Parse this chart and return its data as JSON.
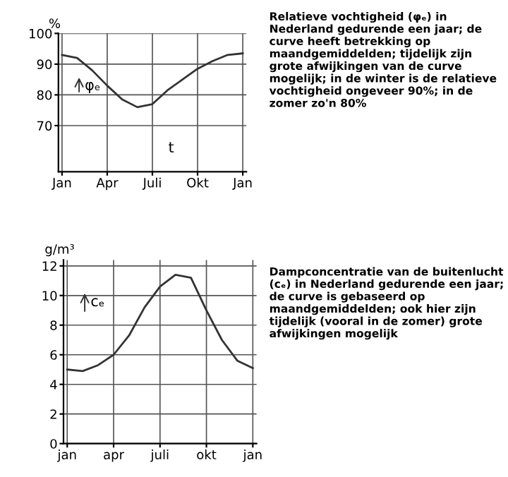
{
  "chart_data": [
    {
      "type": "line",
      "ylabel": "%",
      "xlabel": "t",
      "categories": [
        "Jan",
        null,
        null,
        "Apr",
        null,
        null,
        "Juli",
        null,
        null,
        "Okt",
        null,
        null,
        "Jan"
      ],
      "series": [
        {
          "color": "#333333",
          "values": [
            93,
            92,
            88,
            83,
            78.5,
            76,
            77,
            81.5,
            85,
            88.5,
            91,
            93,
            93.5
          ]
        }
      ],
      "ylim": [
        55,
        100
      ],
      "yticks": [
        70,
        80,
        90,
        100
      ],
      "grid": true,
      "marker": "none",
      "line_style": "solid",
      "annotations": [
        "φₑ",
        "Relatieve vochtigheid (φₑ) in Nederland gedurende een jaar; de curve heeft betrekking op maandgemiddelden; tijdelijk zijn grote afwijkingen van de curve mogelijk; in de winter is de relatieve vochtigheid ongeveer 90%; in de zomer zo'n 80%"
      ]
    },
    {
      "type": "line",
      "ylabel": "g/m³",
      "categories": [
        "jan",
        null,
        null,
        "apr",
        null,
        null,
        "juli",
        null,
        null,
        "okt",
        null,
        null,
        "jan"
      ],
      "series": [
        {
          "color": "#333333",
          "values": [
            5.0,
            4.9,
            5.3,
            6.0,
            7.3,
            9.2,
            10.6,
            11.4,
            11.2,
            9.0,
            7.0,
            5.6,
            5.1
          ]
        }
      ],
      "ylim": [
        0,
        12.4
      ],
      "yticks": [
        0,
        2,
        4,
        6,
        8,
        10,
        12
      ],
      "grid": true,
      "marker": "none",
      "line_style": "solid",
      "annotations": [
        "cₑ",
        "Dampconcentratie van de buitenlucht (cₑ) in Nederland gedurende een jaar; de curve is gebaseerd op maandgemiddelden; ook hier zijn tijdelijk (vooral in de zomer) grote afwijkingen mogelijk"
      ]
    }
  ]
}
